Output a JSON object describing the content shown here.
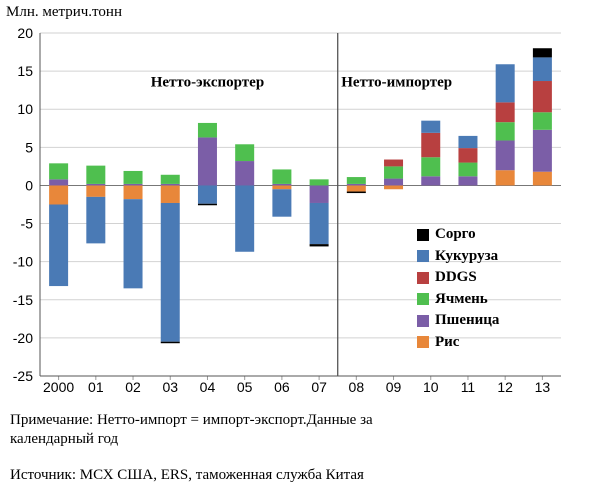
{
  "chart_data": {
    "type": "stacked-bar",
    "ylabel": "Млн. метрич.тонн",
    "ylim": [
      -25,
      20
    ],
    "yticks": [
      -25,
      -20,
      -15,
      -10,
      -5,
      0,
      5,
      10,
      15,
      20
    ],
    "categories": [
      "2000",
      "01",
      "02",
      "03",
      "04",
      "05",
      "06",
      "07",
      "08",
      "09",
      "10",
      "11",
      "12",
      "13"
    ],
    "annotations": [
      {
        "text": "Нетто-экспортер",
        "region": "left"
      },
      {
        "text": "Нетто-импортер",
        "region": "right"
      }
    ],
    "divider_after_category": "07",
    "series": [
      {
        "name": "Рис",
        "color": "#e8873a",
        "values": [
          -2.5,
          -1.5,
          -1.8,
          -2.3,
          0,
          0,
          -0.5,
          0,
          -0.8,
          -0.5,
          0,
          0,
          2.0,
          1.8
        ]
      },
      {
        "name": "Пшеница",
        "color": "#7b5ea7",
        "values": [
          0.8,
          0.2,
          0.2,
          0.2,
          6.3,
          3.2,
          0.2,
          -2.3,
          0.2,
          0.9,
          1.2,
          1.2,
          3.9,
          5.5
        ]
      },
      {
        "name": "Ячмень",
        "color": "#4fbf4f",
        "values": [
          2.1,
          2.4,
          1.7,
          1.2,
          1.9,
          2.2,
          1.9,
          0.8,
          0.9,
          1.6,
          2.5,
          1.8,
          2.4,
          2.3
        ]
      },
      {
        "name": "DDGS",
        "color": "#b84040",
        "values": [
          0,
          0,
          0,
          0,
          0,
          0,
          0,
          0,
          0,
          0.9,
          3.2,
          1.9,
          2.6,
          4.1
        ]
      },
      {
        "name": "Кукуруза",
        "color": "#4a7ab5",
        "values": [
          -10.7,
          -6.1,
          -11.7,
          -18.2,
          -2.4,
          -8.7,
          -3.6,
          -5.4,
          0,
          0,
          1.6,
          1.6,
          5.0,
          3.1
        ]
      },
      {
        "name": "Сорго",
        "color": "#000000",
        "values": [
          0,
          0,
          0,
          -0.2,
          -0.2,
          0,
          0,
          -0.3,
          -0.2,
          0,
          0,
          0,
          0,
          1.2
        ]
      }
    ],
    "legend_order": [
      "Сорго",
      "Кукуруза",
      "DDGS",
      "Ячмень",
      "Пшеница",
      "Рис"
    ],
    "legend_position": "lower-right"
  },
  "note": "Примечание: Нетто-импорт = импорт-экспорт.Данные за календарный год",
  "source": "Источник: МСХ США, ERS, таможенная служба Китая"
}
